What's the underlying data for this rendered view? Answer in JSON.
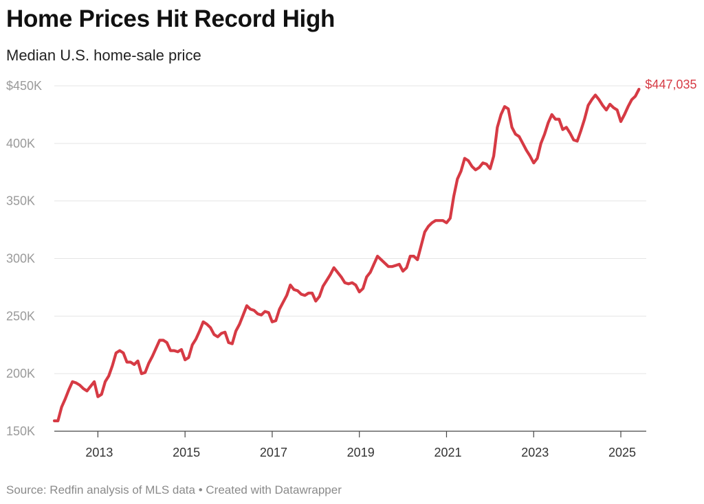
{
  "title": "Home Prices Hit Record High",
  "subtitle": "Median U.S. home-sale price",
  "source": "Source: Redfin analysis of MLS data • Created with Datawrapper",
  "colors": {
    "line": "#d63a44",
    "grid": "#e4e4e4",
    "tick_text": "#9a9a9a",
    "axis": "#444444"
  },
  "chart_data": {
    "type": "line",
    "title": "Home Prices Hit Record High",
    "subtitle": "Median U.S. home-sale price",
    "xlim": [
      "2012-01",
      "2025-08"
    ],
    "ylim": [
      150000,
      450000
    ],
    "y_ticks": [
      {
        "value": 450000,
        "label": "$450K"
      },
      {
        "value": 400000,
        "label": "400K"
      },
      {
        "value": 350000,
        "label": "350K"
      },
      {
        "value": 300000,
        "label": "300K"
      },
      {
        "value": 250000,
        "label": "250K"
      },
      {
        "value": 200000,
        "label": "200K"
      },
      {
        "value": 150000,
        "label": "150K"
      }
    ],
    "x_ticks": [
      {
        "value": "2013-01",
        "label": "2013"
      },
      {
        "value": "2015-01",
        "label": "2015"
      },
      {
        "value": "2017-01",
        "label": "2017"
      },
      {
        "value": "2019-01",
        "label": "2019"
      },
      {
        "value": "2021-01",
        "label": "2021"
      },
      {
        "value": "2023-01",
        "label": "2023"
      },
      {
        "value": "2025-01",
        "label": "2025"
      }
    ],
    "grid": true,
    "end_label": "$447,035",
    "series": [
      {
        "x": [
          "2012-01",
          "2012-02",
          "2012-03",
          "2012-04",
          "2012-05",
          "2012-06",
          "2012-07",
          "2012-08",
          "2012-09",
          "2012-10",
          "2012-11",
          "2012-12",
          "2013-01",
          "2013-02",
          "2013-03",
          "2013-04",
          "2013-05",
          "2013-06",
          "2013-07",
          "2013-08",
          "2013-09",
          "2013-10",
          "2013-11",
          "2013-12",
          "2014-01",
          "2014-02",
          "2014-03",
          "2014-04",
          "2014-05",
          "2014-06",
          "2014-07",
          "2014-08",
          "2014-09",
          "2014-10",
          "2014-11",
          "2014-12",
          "2015-01",
          "2015-02",
          "2015-03",
          "2015-04",
          "2015-05",
          "2015-06",
          "2015-07",
          "2015-08",
          "2015-09",
          "2015-10",
          "2015-11",
          "2015-12",
          "2016-01",
          "2016-02",
          "2016-03",
          "2016-04",
          "2016-05",
          "2016-06",
          "2016-07",
          "2016-08",
          "2016-09",
          "2016-10",
          "2016-11",
          "2016-12",
          "2017-01",
          "2017-02",
          "2017-03",
          "2017-04",
          "2017-05",
          "2017-06",
          "2017-07",
          "2017-08",
          "2017-09",
          "2017-10",
          "2017-11",
          "2017-12",
          "2018-01",
          "2018-02",
          "2018-03",
          "2018-04",
          "2018-05",
          "2018-06",
          "2018-07",
          "2018-08",
          "2018-09",
          "2018-10",
          "2018-11",
          "2018-12",
          "2019-01",
          "2019-02",
          "2019-03",
          "2019-04",
          "2019-05",
          "2019-06",
          "2019-07",
          "2019-08",
          "2019-09",
          "2019-10",
          "2019-11",
          "2019-12",
          "2020-01",
          "2020-02",
          "2020-03",
          "2020-04",
          "2020-05",
          "2020-06",
          "2020-07",
          "2020-08",
          "2020-09",
          "2020-10",
          "2020-11",
          "2020-12",
          "2021-01",
          "2021-02",
          "2021-03",
          "2021-04",
          "2021-05",
          "2021-06",
          "2021-07",
          "2021-08",
          "2021-09",
          "2021-10",
          "2021-11",
          "2021-12",
          "2022-01",
          "2022-02",
          "2022-03",
          "2022-04",
          "2022-05",
          "2022-06",
          "2022-07",
          "2022-08",
          "2022-09",
          "2022-10",
          "2022-11",
          "2022-12",
          "2023-01",
          "2023-02",
          "2023-03",
          "2023-04",
          "2023-05",
          "2023-06",
          "2023-07",
          "2023-08",
          "2023-09",
          "2023-10",
          "2023-11",
          "2023-12",
          "2024-01",
          "2024-02",
          "2024-03",
          "2024-04",
          "2024-05",
          "2024-06",
          "2024-07",
          "2024-08",
          "2024-09",
          "2024-10",
          "2024-11",
          "2024-12",
          "2025-01",
          "2025-02",
          "2025-03",
          "2025-04",
          "2025-05",
          "2025-06"
        ],
        "values": [
          159000,
          159000,
          171000,
          178000,
          186000,
          193000,
          192000,
          190000,
          187000,
          185000,
          189000,
          193000,
          180000,
          182000,
          193000,
          198000,
          207000,
          218000,
          220000,
          218000,
          210000,
          210000,
          208000,
          211000,
          200000,
          201000,
          209000,
          215000,
          222000,
          229000,
          229000,
          227000,
          220000,
          220000,
          219000,
          221000,
          212000,
          214000,
          225000,
          230000,
          237000,
          245000,
          243000,
          240000,
          234000,
          232000,
          235000,
          236000,
          227000,
          226000,
          237000,
          243000,
          251000,
          259000,
          256000,
          255000,
          252000,
          251000,
          254000,
          253000,
          245000,
          246000,
          256000,
          262000,
          268000,
          277000,
          273000,
          272000,
          269000,
          268000,
          270000,
          270000,
          263000,
          267000,
          276000,
          281000,
          286000,
          292000,
          288000,
          284000,
          279000,
          278000,
          279000,
          277000,
          271000,
          274000,
          284000,
          288000,
          295000,
          302000,
          299000,
          296000,
          293000,
          293000,
          294000,
          295000,
          289000,
          292000,
          302000,
          302000,
          299000,
          311000,
          323000,
          328000,
          331000,
          333000,
          333000,
          333000,
          331000,
          335000,
          354000,
          369000,
          376000,
          387000,
          385000,
          380000,
          377000,
          379000,
          383000,
          382000,
          378000,
          389000,
          414000,
          425000,
          432000,
          430000,
          414000,
          408000,
          406000,
          400000,
          394000,
          389000,
          383000,
          387000,
          400000,
          408000,
          418000,
          425000,
          421000,
          421000,
          412000,
          414000,
          409000,
          403000,
          402000,
          411000,
          421000,
          433000,
          438000,
          442000,
          438000,
          433000,
          429000,
          434000,
          431000,
          429000,
          419000,
          425000,
          432000,
          438000,
          441000,
          447035
        ]
      }
    ]
  }
}
